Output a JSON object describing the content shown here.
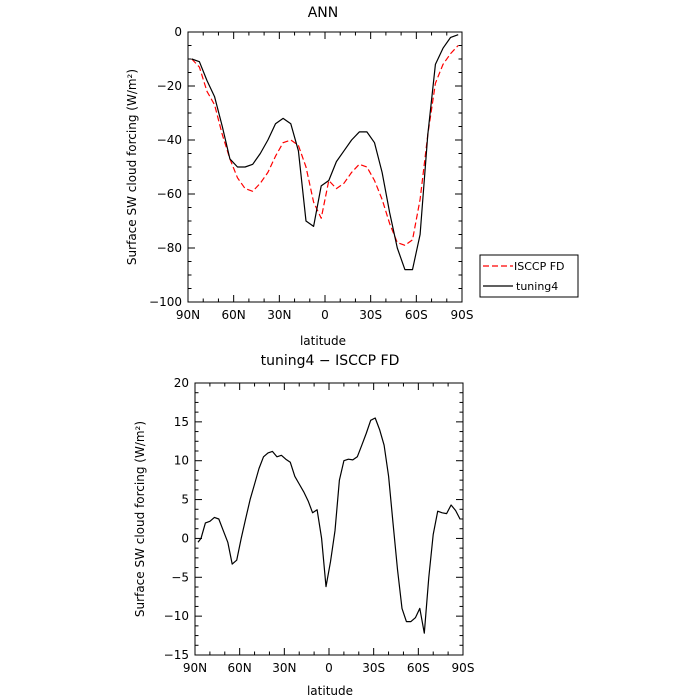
{
  "chart_data": [
    {
      "type": "line",
      "title": "ANN",
      "xlabel": "latitude",
      "ylabel": "Surface SW cloud forcing (W/m²)",
      "x_ticks": [
        "90N",
        "60N",
        "30N",
        "0",
        "30S",
        "60S",
        "90S"
      ],
      "xlim": [
        -90,
        90
      ],
      "ylim": [
        -100,
        0
      ],
      "y_ticks": [
        "0",
        "−20",
        "−40",
        "−60",
        "−80",
        "−100"
      ],
      "legend": "outside-right",
      "series": [
        {
          "name": "ISCCP FD",
          "color": "#ff0000",
          "dash": "dashed",
          "x": [
            -87.5,
            -82.5,
            -77.5,
            -72.5,
            -67.5,
            -62.5,
            -57.5,
            -52.5,
            -47.5,
            -42.5,
            -37.5,
            -32.5,
            -27.5,
            -22.5,
            -17.5,
            -12.5,
            -7.5,
            -2.5,
            2.5,
            7.5,
            12.5,
            17.5,
            22.5,
            27.5,
            32.5,
            37.5,
            42.5,
            47.5,
            52.5,
            57.5,
            62.5,
            67.5,
            72.5,
            77.5,
            82.5,
            87.5
          ],
          "y": [
            -10,
            -13,
            -22,
            -27,
            -38,
            -47,
            -54,
            -58,
            -59,
            -56,
            -52,
            -46,
            -41,
            -40,
            -42,
            -50,
            -63,
            -69,
            -55,
            -58,
            -56,
            -52,
            -49,
            -50,
            -55,
            -62,
            -71,
            -78,
            -79,
            -77,
            -62,
            -38,
            -19,
            -12,
            -8,
            -5
          ]
        },
        {
          "name": "tuning4",
          "color": "#000000",
          "dash": "solid",
          "x": [
            -87.5,
            -82.5,
            -77.5,
            -72.5,
            -67.5,
            -62.5,
            -57.5,
            -52.5,
            -47.5,
            -42.5,
            -37.5,
            -32.5,
            -27.5,
            -22.5,
            -17.5,
            -12.5,
            -7.5,
            -2.5,
            2.5,
            7.5,
            12.5,
            17.5,
            22.5,
            27.5,
            32.5,
            37.5,
            42.5,
            47.5,
            52.5,
            57.5,
            62.5,
            67.5,
            72.5,
            77.5,
            82.5,
            87.5
          ],
          "y": [
            -10,
            -11,
            -18,
            -24,
            -35,
            -47,
            -50,
            -50,
            -49,
            -45,
            -40,
            -34,
            -32,
            -34,
            -44,
            -70,
            -72,
            -57,
            -55,
            -48,
            -44,
            -40,
            -37,
            -37,
            -41,
            -52,
            -67,
            -80,
            -88,
            -88,
            -75,
            -38,
            -12,
            -6,
            -2,
            -1
          ]
        }
      ]
    },
    {
      "type": "line",
      "title": "tuning4 − ISCCP FD",
      "xlabel": "latitude",
      "ylabel": "Surface SW cloud forcing (W/m²)",
      "x_ticks": [
        "90N",
        "60N",
        "30N",
        "0",
        "30S",
        "60S",
        "90S"
      ],
      "xlim": [
        -90,
        90
      ],
      "ylim": [
        -15,
        20
      ],
      "y_ticks": [
        "20",
        "15",
        "10",
        "5",
        "0",
        "−5",
        "−10",
        "−15"
      ],
      "series": [
        {
          "color": "#000000",
          "x": [
            -88,
            -86,
            -83,
            -80,
            -77,
            -74,
            -71,
            -68,
            -65,
            -62,
            -59,
            -56,
            -53,
            -50,
            -47,
            -44,
            -41,
            -38,
            -35,
            -32,
            -29,
            -26,
            -23,
            -20,
            -17,
            -14,
            -11,
            -8,
            -5,
            -2,
            1,
            4,
            7,
            10,
            13,
            16,
            19,
            22,
            25,
            28,
            31,
            34,
            37,
            40,
            43,
            46,
            49,
            52,
            55,
            58,
            61,
            64,
            67,
            70,
            73,
            76,
            79,
            82,
            85,
            88
          ],
          "y": [
            -0.5,
            0,
            2,
            2.2,
            2.7,
            2.5,
            1,
            -0.5,
            -3.3,
            -2.8,
            0,
            2.5,
            5,
            7,
            9,
            10.5,
            11,
            11.2,
            10.5,
            10.7,
            10.2,
            9.8,
            8,
            7,
            6,
            4.8,
            3.3,
            3.7,
            0,
            -6.2,
            -3,
            1,
            7.5,
            10,
            10.2,
            10.1,
            10.5,
            12,
            13.5,
            15.2,
            15.5,
            14,
            12,
            8,
            2,
            -4,
            -9,
            -10.7,
            -10.7,
            -10.2,
            -9,
            -12.2,
            -5,
            0.5,
            3.5,
            3.3,
            3.2,
            4.3,
            3.6,
            2.5
          ]
        }
      ]
    }
  ]
}
